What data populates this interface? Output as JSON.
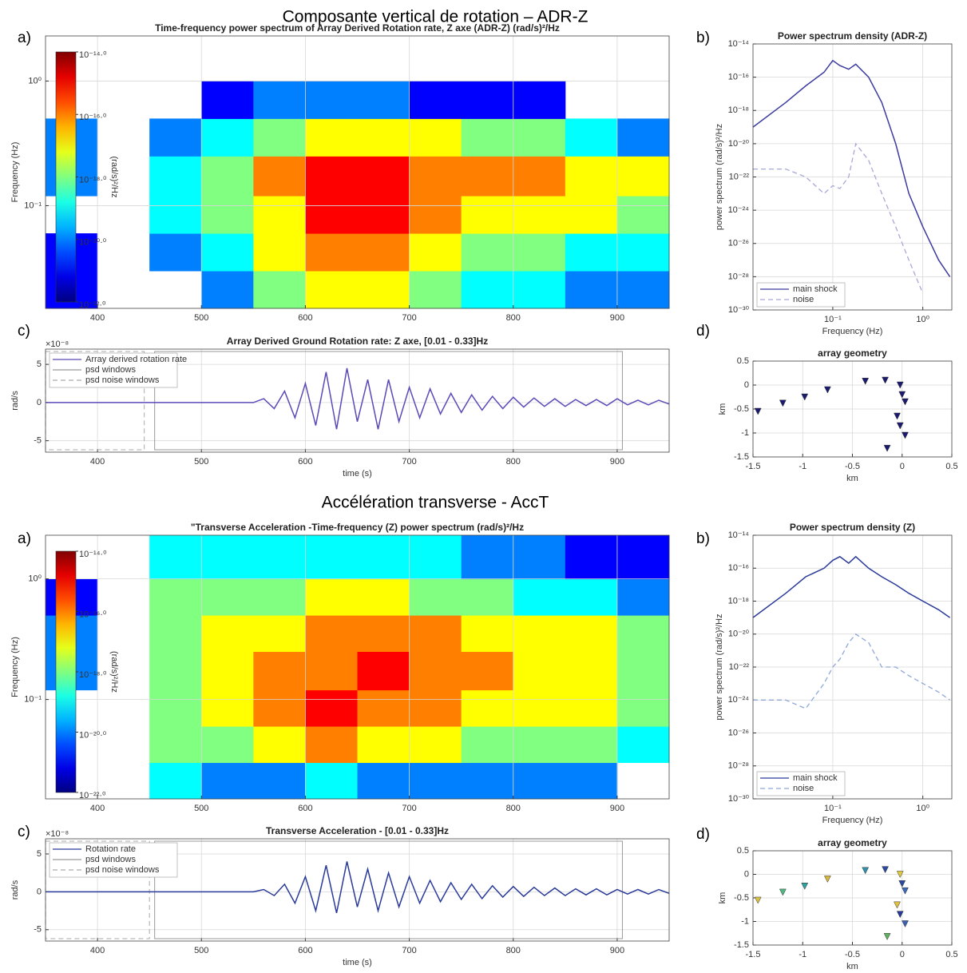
{
  "sections": [
    {
      "title": "Composante vertical de rotation – ADR-Z"
    },
    {
      "title": "Accélération transverse - AccT"
    }
  ],
  "chart_data": [
    {
      "type": "heatmap",
      "panel": "a)",
      "title": "Time-frequency power spectrum of Array Derived Rotation rate, Z axe (ADR-Z) (rad/s)²/Hz",
      "ylabel": "Frequency (Hz)",
      "xbins": [
        350,
        400,
        450,
        500,
        550,
        600,
        650,
        700,
        750,
        800,
        850,
        900,
        950
      ],
      "ybins": [
        0.015,
        0.03,
        0.06,
        0.12,
        0.25,
        0.5,
        1,
        2.3
      ],
      "z": [
        [
          1e-21,
          null,
          null,
          1e-20,
          1e-18,
          1e-17,
          1e-17,
          1e-18,
          1e-19,
          1e-19,
          1e-20,
          1e-20
        ],
        [
          1e-21,
          null,
          1e-20,
          1e-19,
          1e-17,
          1e-16,
          1e-16,
          1e-17,
          1e-18,
          1e-18,
          1e-19,
          1e-19
        ],
        [
          null,
          null,
          1e-19,
          1e-18,
          1e-17,
          1e-15,
          1e-15,
          1e-16,
          1e-17,
          1e-17,
          1e-17,
          1e-18
        ],
        [
          1e-20,
          null,
          1e-19,
          1e-18,
          1e-16,
          1e-15,
          1e-15,
          1e-16,
          1e-16,
          1e-16,
          1e-17,
          1e-17
        ],
        [
          1e-20,
          null,
          1e-20,
          1e-19,
          1e-18,
          1e-17,
          1e-17,
          1e-17,
          1e-18,
          1e-18,
          1e-19,
          1e-20
        ],
        [
          null,
          null,
          null,
          1e-21,
          1e-20,
          1e-20,
          1e-20,
          1e-21,
          1e-21,
          1e-21,
          null,
          null
        ],
        [
          null,
          null,
          null,
          null,
          null,
          null,
          null,
          null,
          null,
          null,
          null,
          null
        ]
      ],
      "xlim": [
        350,
        950
      ],
      "xticks": [
        400,
        500,
        600,
        700,
        800,
        900
      ],
      "ylim": [
        0.015,
        2.3
      ],
      "yscale": "log",
      "yticks": [
        {
          "value": 0.1,
          "label": "10⁻¹"
        },
        {
          "value": 1,
          "label": "10⁰"
        }
      ],
      "grid": true,
      "colorbar": {
        "label": "(rad/s)²/Hz",
        "zlim": [
          1e-22,
          1e-14
        ],
        "ticks": [
          {
            "value": 1e-14,
            "label": "10⁻¹⁴·⁰"
          },
          {
            "value": 1e-16,
            "label": "10⁻¹⁶·⁰"
          },
          {
            "value": 1e-18,
            "label": "10⁻¹⁸·⁰"
          },
          {
            "value": 1e-20,
            "label": "10⁻²⁰·⁰"
          },
          {
            "value": 1e-22,
            "label": "10⁻²²·⁰"
          }
        ]
      }
    },
    {
      "type": "line",
      "panel": "b)",
      "title": "Power spectrum density (ADR-Z)",
      "xlabel": "Frequency (Hz)",
      "ylabel": "power spectrum (rad/s)²/Hz",
      "x": [
        0.013,
        0.03,
        0.05,
        0.08,
        0.1,
        0.12,
        0.15,
        0.18,
        0.25,
        0.35,
        0.5,
        0.7,
        1,
        1.5,
        2
      ],
      "series": [
        {
          "name": "main shock",
          "color": "#3c3ca0",
          "dash": false,
          "values": [
            1e-19,
            3e-18,
            3e-17,
            2e-16,
            1e-15,
            5e-16,
            3e-16,
            6e-16,
            1e-16,
            3e-18,
            1e-20,
            1e-23,
            1e-25,
            1e-27,
            1e-28
          ]
        },
        {
          "name": "noise",
          "color": "#a8a8d8",
          "dash": true,
          "values": [
            3e-22,
            3e-22,
            1e-22,
            1e-23,
            3e-23,
            2e-23,
            1e-22,
            1e-20,
            1e-21,
            1e-23,
            1e-25,
            1e-27,
            1e-29,
            null,
            null
          ]
        }
      ],
      "xscale": "log",
      "xlim": [
        0.013,
        2.1
      ],
      "xticks": [
        {
          "value": 0.1,
          "label": "10⁻¹"
        },
        {
          "value": 1,
          "label": "10⁰"
        }
      ],
      "yscale": "log",
      "ylim": [
        1e-30,
        1e-14
      ],
      "yticks": [
        {
          "value": 1e-14,
          "label": "10⁻¹⁴"
        },
        {
          "value": 1e-16,
          "label": "10⁻¹⁶"
        },
        {
          "value": 1e-18,
          "label": "10⁻¹⁸"
        },
        {
          "value": 1e-20,
          "label": "10⁻²⁰"
        },
        {
          "value": 1e-22,
          "label": "10⁻²²"
        },
        {
          "value": 1e-24,
          "label": "10⁻²⁴"
        },
        {
          "value": 1e-26,
          "label": "10⁻²⁶"
        },
        {
          "value": 1e-28,
          "label": "10⁻²⁸"
        },
        {
          "value": 1e-30,
          "label": "10⁻³⁰"
        }
      ],
      "grid": true,
      "legend": "lower left"
    },
    {
      "type": "line",
      "panel": "c)",
      "title": "Array Derived Ground Rotation rate: Z axe,  [0.01 - 0.33]Hz",
      "xlabel": "time (s)",
      "ylabel": "rad/s",
      "multiplier": "×10⁻⁸",
      "x": [
        350,
        360,
        370,
        380,
        390,
        400,
        410,
        420,
        430,
        440,
        450,
        460,
        470,
        480,
        490,
        500,
        510,
        520,
        530,
        540,
        550,
        560,
        570,
        580,
        590,
        600,
        610,
        620,
        630,
        640,
        650,
        660,
        670,
        680,
        690,
        700,
        710,
        720,
        730,
        740,
        750,
        760,
        770,
        780,
        790,
        800,
        810,
        820,
        830,
        840,
        850,
        860,
        870,
        880,
        890,
        900,
        910,
        920,
        930,
        940,
        950
      ],
      "series": [
        {
          "name": "Array derived rotation rate",
          "color": "#5a4ab8",
          "dash": false,
          "values": [
            0,
            0,
            0,
            0,
            0,
            0,
            0,
            0,
            0,
            0,
            0,
            0,
            0,
            0,
            0,
            0,
            0,
            0,
            0,
            0,
            0,
            0.5,
            -0.8,
            1.5,
            -2,
            2.5,
            -3,
            4,
            -3.5,
            4.5,
            -2.5,
            3,
            -3.5,
            3,
            -2.5,
            2,
            -2,
            1.8,
            -1.5,
            1.2,
            -1.3,
            1,
            -1,
            0.8,
            -0.8,
            0.7,
            -0.6,
            0.6,
            -0.5,
            0.5,
            -0.5,
            0.4,
            -0.4,
            0.4,
            -0.4,
            0.5,
            -0.3,
            0.3,
            -0.3,
            0.3,
            -0.2
          ]
        }
      ],
      "psd_window": {
        "name": "psd windows",
        "range": [
          455,
          905
        ]
      },
      "noise_window": {
        "name": "psd noise windows",
        "range": [
          350,
          445
        ]
      },
      "xlim": [
        350,
        950
      ],
      "xticks": [
        400,
        500,
        600,
        700,
        800,
        900
      ],
      "ylim": [
        -6.5,
        7
      ],
      "yticks": [
        5,
        0,
        -5
      ],
      "grid": true,
      "legend": "upper left"
    },
    {
      "type": "scatter",
      "panel": "d)",
      "title": "array geometry",
      "xlabel": "km",
      "ylabel": "km",
      "x": [
        -1.45,
        -1.2,
        -0.98,
        -0.75,
        -0.37,
        -0.17,
        -0.02,
        0,
        0.03,
        -0.05,
        -0.02,
        0.03,
        -0.15
      ],
      "values": [
        -0.55,
        -0.38,
        -0.25,
        -0.1,
        0.08,
        0.1,
        0,
        -0.2,
        -0.35,
        -0.65,
        -0.85,
        -1.05,
        -1.32
      ],
      "colors": [
        "#1a1a6e",
        "#1a1a6e",
        "#1a1a6e",
        "#1a1a6e",
        "#1a1a6e",
        "#1a1a6e",
        "#1a1a6e",
        "#1a1a6e",
        "#1a1a6e",
        "#1a1a6e",
        "#1a1a6e",
        "#1a1a6e",
        "#1a1a6e"
      ],
      "xlim": [
        -1.5,
        0.5
      ],
      "xticks": [
        -1.5,
        -1,
        -0.5,
        0,
        0.5
      ],
      "ylim": [
        -1.5,
        0.5
      ],
      "yticks": [
        0.5,
        0,
        -0.5,
        -1,
        -1.5
      ],
      "grid": true
    },
    {
      "type": "heatmap",
      "panel": "a)",
      "title": "\"Transverse Acceleration -Time-frequency (Z) power spectrum (rad/s)²/Hz",
      "ylabel": "Frequency (Hz)",
      "xbins": [
        350,
        400,
        450,
        500,
        550,
        600,
        650,
        700,
        750,
        800,
        850,
        900,
        950
      ],
      "ybins": [
        0.015,
        0.03,
        0.06,
        0.12,
        0.25,
        0.5,
        1,
        2.3
      ],
      "z": [
        [
          null,
          null,
          1e-19,
          1e-20,
          1e-20,
          1e-19,
          1e-20,
          1e-20,
          1e-20,
          1e-20,
          1e-20,
          null
        ],
        [
          null,
          null,
          1e-18,
          1e-18,
          1e-17,
          1e-16,
          1e-17,
          1e-17,
          1e-18,
          1e-18,
          1e-18,
          1e-19
        ],
        [
          null,
          null,
          1e-18,
          1e-17,
          1e-16,
          1e-15,
          1e-16,
          1e-16,
          1e-17,
          1e-17,
          1e-17,
          1e-18
        ],
        [
          1e-20,
          null,
          1e-18,
          1e-17,
          1e-16,
          1e-16,
          1e-15,
          1e-16,
          1e-16,
          1e-17,
          1e-17,
          1e-18
        ],
        [
          1e-20,
          null,
          1e-18,
          1e-17,
          1e-17,
          1e-16,
          1e-16,
          1e-16,
          1e-17,
          1e-17,
          1e-17,
          1e-18
        ],
        [
          1e-21,
          null,
          1e-18,
          1e-18,
          1e-18,
          1e-17,
          1e-17,
          1e-18,
          1e-18,
          1e-19,
          1e-19,
          1e-20
        ],
        [
          null,
          null,
          1e-19,
          1e-19,
          1e-19,
          1e-19,
          1e-19,
          1e-19,
          1e-20,
          1e-20,
          1e-21,
          1e-21
        ]
      ],
      "xlim": [
        350,
        950
      ],
      "xticks": [
        400,
        500,
        600,
        700,
        800,
        900
      ],
      "ylim": [
        0.015,
        2.3
      ],
      "yscale": "log",
      "yticks": [
        {
          "value": 0.1,
          "label": "10⁻¹"
        },
        {
          "value": 1,
          "label": "10⁰"
        }
      ],
      "grid": true,
      "colorbar": {
        "label": "(rad/s)²/Hz",
        "zlim": [
          1e-22,
          1e-14
        ],
        "ticks": [
          {
            "value": 1e-14,
            "label": "10⁻¹⁴·⁰"
          },
          {
            "value": 1e-16,
            "label": "10⁻¹⁶·⁰"
          },
          {
            "value": 1e-18,
            "label": "10⁻¹⁸·⁰"
          },
          {
            "value": 1e-20,
            "label": "10⁻²⁰·⁰"
          },
          {
            "value": 1e-22,
            "label": "10⁻²²·⁰"
          }
        ]
      }
    },
    {
      "type": "line",
      "panel": "b)",
      "title": "Power spectrum density (Z)",
      "xlabel": "Frequency (Hz)",
      "ylabel": "power spectrum (rad/s)²/Hz",
      "x": [
        0.013,
        0.03,
        0.05,
        0.08,
        0.1,
        0.12,
        0.15,
        0.18,
        0.25,
        0.35,
        0.5,
        0.7,
        1,
        1.5,
        2
      ],
      "series": [
        {
          "name": "main shock",
          "color": "#2a3a9a",
          "dash": false,
          "values": [
            1e-19,
            3e-18,
            3e-17,
            1e-16,
            3e-16,
            5e-16,
            2e-16,
            5e-16,
            1e-16,
            3e-17,
            1e-17,
            3e-18,
            1e-18,
            3e-19,
            1e-19
          ]
        },
        {
          "name": "noise",
          "color": "#8fa8d8",
          "dash": true,
          "values": [
            1e-24,
            1e-24,
            3e-25,
            1e-23,
            1e-22,
            3e-22,
            3e-21,
            1e-20,
            3e-21,
            1e-22,
            1e-22,
            3e-23,
            1e-23,
            3e-24,
            1e-24
          ]
        }
      ],
      "xscale": "log",
      "xlim": [
        0.013,
        2.1
      ],
      "xticks": [
        {
          "value": 0.1,
          "label": "10⁻¹"
        },
        {
          "value": 1,
          "label": "10⁰"
        }
      ],
      "yscale": "log",
      "ylim": [
        1e-30,
        1e-14
      ],
      "yticks": [
        {
          "value": 1e-14,
          "label": "10⁻¹⁴"
        },
        {
          "value": 1e-16,
          "label": "10⁻¹⁶"
        },
        {
          "value": 1e-18,
          "label": "10⁻¹⁸"
        },
        {
          "value": 1e-20,
          "label": "10⁻²⁰"
        },
        {
          "value": 1e-22,
          "label": "10⁻²²"
        },
        {
          "value": 1e-24,
          "label": "10⁻²⁴"
        },
        {
          "value": 1e-26,
          "label": "10⁻²⁶"
        },
        {
          "value": 1e-28,
          "label": "10⁻²⁸"
        },
        {
          "value": 1e-30,
          "label": "10⁻³⁰"
        }
      ],
      "grid": true,
      "legend": "lower left"
    },
    {
      "type": "line",
      "panel": "c)",
      "title": "Transverse Acceleration -  [0.01 - 0.33]Hz",
      "xlabel": "time (s)",
      "ylabel": "rad/s",
      "multiplier": "×10⁻⁸",
      "x": [
        350,
        360,
        370,
        380,
        390,
        400,
        410,
        420,
        430,
        440,
        450,
        460,
        470,
        480,
        490,
        500,
        510,
        520,
        530,
        540,
        550,
        560,
        570,
        580,
        590,
        600,
        610,
        620,
        630,
        640,
        650,
        660,
        670,
        680,
        690,
        700,
        710,
        720,
        730,
        740,
        750,
        760,
        770,
        780,
        790,
        800,
        810,
        820,
        830,
        840,
        850,
        860,
        870,
        880,
        890,
        900,
        910,
        920,
        930,
        940,
        950
      ],
      "series": [
        {
          "name": "Rotation rate",
          "color": "#2a3a9a",
          "dash": false,
          "values": [
            0,
            0,
            0,
            0,
            0,
            0,
            0,
            0,
            0,
            0,
            0,
            0,
            0,
            0,
            0,
            0,
            0,
            0,
            0,
            0,
            0,
            0.3,
            -0.5,
            1,
            -1.5,
            2,
            -2.5,
            3.5,
            -2.8,
            4,
            -2,
            3,
            -2.5,
            2.5,
            -2,
            2,
            -1.5,
            1.5,
            -1.3,
            1.2,
            -1,
            1,
            -0.9,
            0.8,
            -0.7,
            0.7,
            -0.6,
            0.6,
            -0.5,
            0.5,
            -0.5,
            0.4,
            -0.4,
            0.4,
            -0.4,
            0.3,
            -0.3,
            0.3,
            -0.3,
            0.3,
            -0.2
          ]
        }
      ],
      "psd_window": {
        "name": "psd windows",
        "range": [
          455,
          905
        ]
      },
      "noise_window": {
        "name": "psd noise windows",
        "range": [
          350,
          450
        ]
      },
      "xlim": [
        350,
        950
      ],
      "xticks": [
        400,
        500,
        600,
        700,
        800,
        900
      ],
      "ylim": [
        -6.5,
        7
      ],
      "yticks": [
        5,
        0,
        -5
      ],
      "grid": true,
      "legend": "upper left"
    },
    {
      "type": "scatter",
      "panel": "d)",
      "title": "array geometry",
      "xlabel": "km",
      "ylabel": "km",
      "x": [
        -1.45,
        -1.2,
        -0.98,
        -0.75,
        -0.37,
        -0.17,
        -0.02,
        0,
        0.03,
        -0.05,
        -0.02,
        0.03,
        -0.15
      ],
      "values": [
        -0.55,
        -0.38,
        -0.25,
        -0.1,
        0.08,
        0.1,
        0,
        -0.2,
        -0.35,
        -0.65,
        -0.85,
        -1.05,
        -1.32
      ],
      "colors": [
        "#d8c040",
        "#50b880",
        "#30a0a0",
        "#d8b840",
        "#3090a8",
        "#2a4aa0",
        "#e0c840",
        "#2a4aa0",
        "#3a6ab8",
        "#e0c040",
        "#2a3a9a",
        "#3a60b0",
        "#60b060"
      ],
      "xlim": [
        -1.5,
        0.5
      ],
      "xticks": [
        -1.5,
        -1,
        -0.5,
        0,
        0.5
      ],
      "ylim": [
        -1.5,
        0.5
      ],
      "yticks": [
        0.5,
        0,
        -0.5,
        -1,
        -1.5
      ],
      "grid": true
    }
  ]
}
